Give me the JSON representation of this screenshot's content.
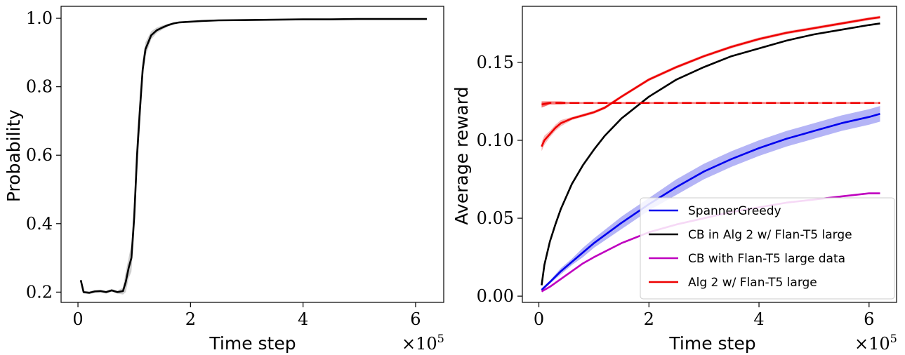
{
  "chart_data": [
    {
      "type": "line",
      "title": "",
      "xlabel": "Time step",
      "ylabel": "Probability",
      "x_scale_label": "×10",
      "x_scale_exp": "5",
      "xlim": [
        -0.3,
        6.5
      ],
      "ylim": [
        0.17,
        1.035
      ],
      "xticks": [
        0,
        2,
        4,
        6
      ],
      "xtick_labels": [
        "0",
        "2",
        "4",
        "6"
      ],
      "yticks": [
        0.2,
        0.4,
        0.6,
        0.8,
        1.0
      ],
      "ytick_labels": [
        "0.2",
        "0.4",
        "0.6",
        "0.8",
        "1.0"
      ],
      "series": [
        {
          "name": "Probability",
          "color": "#000000",
          "band_color": "#a6a6a6",
          "x": [
            0.05,
            0.1,
            0.2,
            0.3,
            0.4,
            0.5,
            0.6,
            0.7,
            0.8,
            0.85,
            0.9,
            0.95,
            1.0,
            1.05,
            1.1,
            1.15,
            1.2,
            1.3,
            1.4,
            1.5,
            1.6,
            1.7,
            1.8,
            2.0,
            2.2,
            2.5,
            3.0,
            3.5,
            4.0,
            4.5,
            5.0,
            5.5,
            6.0,
            6.2
          ],
          "y": [
            0.235,
            0.2,
            0.198,
            0.202,
            0.203,
            0.2,
            0.205,
            0.2,
            0.203,
            0.23,
            0.27,
            0.3,
            0.42,
            0.6,
            0.73,
            0.85,
            0.91,
            0.95,
            0.965,
            0.973,
            0.98,
            0.985,
            0.988,
            0.99,
            0.992,
            0.994,
            0.995,
            0.996,
            0.997,
            0.997,
            0.998,
            0.998,
            0.998,
            0.998
          ],
          "band": [
            0.004,
            0.004,
            0.004,
            0.004,
            0.004,
            0.004,
            0.004,
            0.004,
            0.01,
            0.03,
            0.03,
            0.04,
            0.05,
            0.06,
            0.05,
            0.03,
            0.02,
            0.012,
            0.008,
            0.006,
            0.004,
            0.003,
            0.002,
            0.002,
            0.001,
            0.001,
            0.001,
            0.001,
            0.001,
            0.001,
            0.001,
            0.001,
            0.001,
            0.001
          ]
        }
      ]
    },
    {
      "type": "line",
      "title": "",
      "xlabel": "Time step",
      "ylabel": "Average reward",
      "x_scale_label": "×10",
      "x_scale_exp": "5",
      "xlim": [
        -0.3,
        6.5
      ],
      "ylim": [
        -0.004,
        0.186
      ],
      "xticks": [
        0,
        2,
        4,
        6
      ],
      "xtick_labels": [
        "0",
        "2",
        "4",
        "6"
      ],
      "yticks": [
        0.0,
        0.05,
        0.1,
        0.15
      ],
      "ytick_labels": [
        "0.00",
        "0.05",
        "0.10",
        "0.15"
      ],
      "legend_location": "lower-right",
      "series": [
        {
          "name": "SpannerGreedy",
          "color": "#0000ee",
          "band_color": "#7777ee",
          "x": [
            0.05,
            0.2,
            0.4,
            0.6,
            0.8,
            1.0,
            1.5,
            2.0,
            2.5,
            3.0,
            3.5,
            4.0,
            4.5,
            5.0,
            5.5,
            6.0,
            6.2
          ],
          "y": [
            0.004,
            0.009,
            0.016,
            0.022,
            0.028,
            0.034,
            0.047,
            0.059,
            0.07,
            0.08,
            0.088,
            0.095,
            0.101,
            0.106,
            0.111,
            0.115,
            0.117
          ],
          "band": [
            0.001,
            0.001,
            0.002,
            0.002,
            0.003,
            0.003,
            0.004,
            0.004,
            0.005,
            0.005,
            0.005,
            0.005,
            0.005,
            0.005,
            0.005,
            0.005,
            0.005
          ]
        },
        {
          "name": "CB in Alg 2 w/ Flan-T5 large",
          "color": "#000000",
          "x": [
            0.05,
            0.1,
            0.2,
            0.3,
            0.4,
            0.5,
            0.6,
            0.8,
            1.0,
            1.2,
            1.5,
            2.0,
            2.5,
            3.0,
            3.5,
            4.0,
            4.5,
            5.0,
            5.5,
            6.0,
            6.2
          ],
          "y": [
            0.007,
            0.02,
            0.035,
            0.046,
            0.056,
            0.064,
            0.072,
            0.084,
            0.094,
            0.103,
            0.114,
            0.128,
            0.139,
            0.147,
            0.154,
            0.159,
            0.164,
            0.168,
            0.171,
            0.174,
            0.175
          ]
        },
        {
          "name": "CB with Flan-T5 large data",
          "color": "#bf00bf",
          "x": [
            0.05,
            0.2,
            0.4,
            0.6,
            0.8,
            1.0,
            1.5,
            2.0,
            2.5,
            3.0,
            3.5,
            4.0,
            4.5,
            5.0,
            5.5,
            6.0,
            6.2
          ],
          "y": [
            0.003,
            0.006,
            0.011,
            0.016,
            0.021,
            0.025,
            0.034,
            0.041,
            0.046,
            0.05,
            0.054,
            0.057,
            0.06,
            0.062,
            0.064,
            0.066,
            0.066
          ]
        },
        {
          "name": "Alg 2 w/ Flan-T5 large",
          "color": "#ee0000",
          "band_color": "#f08080",
          "x": [
            0.05,
            0.1,
            0.2,
            0.3,
            0.4,
            0.6,
            0.8,
            1.0,
            1.2,
            1.5,
            2.0,
            2.5,
            3.0,
            3.5,
            4.0,
            4.5,
            5.0,
            5.5,
            6.0,
            6.2
          ],
          "y": [
            0.096,
            0.1,
            0.104,
            0.108,
            0.111,
            0.114,
            0.116,
            0.118,
            0.121,
            0.128,
            0.139,
            0.147,
            0.154,
            0.16,
            0.165,
            0.169,
            0.172,
            0.175,
            0.178,
            0.179
          ],
          "band": [
            0.003,
            0.003,
            0.002,
            0.002,
            0.002,
            0.001,
            0.001,
            0.001,
            0.001,
            0.001,
            0.001,
            0.001,
            0.001,
            0.001,
            0.001,
            0.001,
            0.001,
            0.001,
            0.001,
            0.001
          ]
        },
        {
          "name": "Alg 2 w/ Flan-T5 large (dashed)",
          "color": "#ee0000",
          "dashed": true,
          "in_legend": false,
          "x": [
            0.05,
            0.2,
            0.4,
            0.6,
            1.0,
            2.0,
            3.0,
            4.0,
            5.0,
            6.0,
            6.2
          ],
          "y": [
            0.123,
            0.124,
            0.124,
            0.124,
            0.124,
            0.124,
            0.124,
            0.124,
            0.124,
            0.124,
            0.124
          ],
          "band": [
            0.002,
            0.001,
            0.001,
            0.0005,
            0.0005,
            0.0005,
            0.0005,
            0.0005,
            0.0005,
            0.0005,
            0.0005
          ]
        }
      ]
    }
  ]
}
